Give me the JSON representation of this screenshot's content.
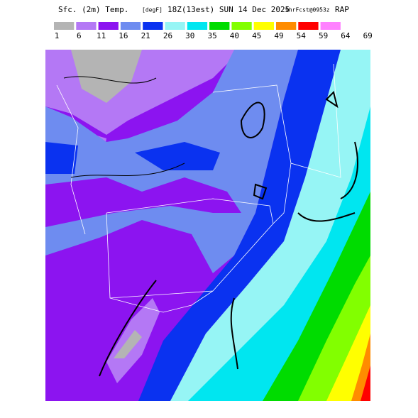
{
  "header": {
    "title": "Sfc. (2m) Temp.",
    "units": "[degF]",
    "valid": "18Z(13est) SUN 14 Dec 2025",
    "forecast": "9hrFcst@0953z",
    "model": "RAP"
  },
  "legend": {
    "labels": [
      1,
      6,
      11,
      16,
      21,
      26,
      30,
      35,
      40,
      45,
      49,
      54,
      59,
      64,
      69
    ],
    "colors": [
      "#b4b4b4",
      "#b478f5",
      "#8c14f0",
      "#6e8cf0",
      "#0a32f0",
      "#96f5f5",
      "#00e6f0",
      "#00dc00",
      "#82ff00",
      "#ffff00",
      "#ff8c00",
      "#ff0000",
      "#ff82ff"
    ]
  }
}
